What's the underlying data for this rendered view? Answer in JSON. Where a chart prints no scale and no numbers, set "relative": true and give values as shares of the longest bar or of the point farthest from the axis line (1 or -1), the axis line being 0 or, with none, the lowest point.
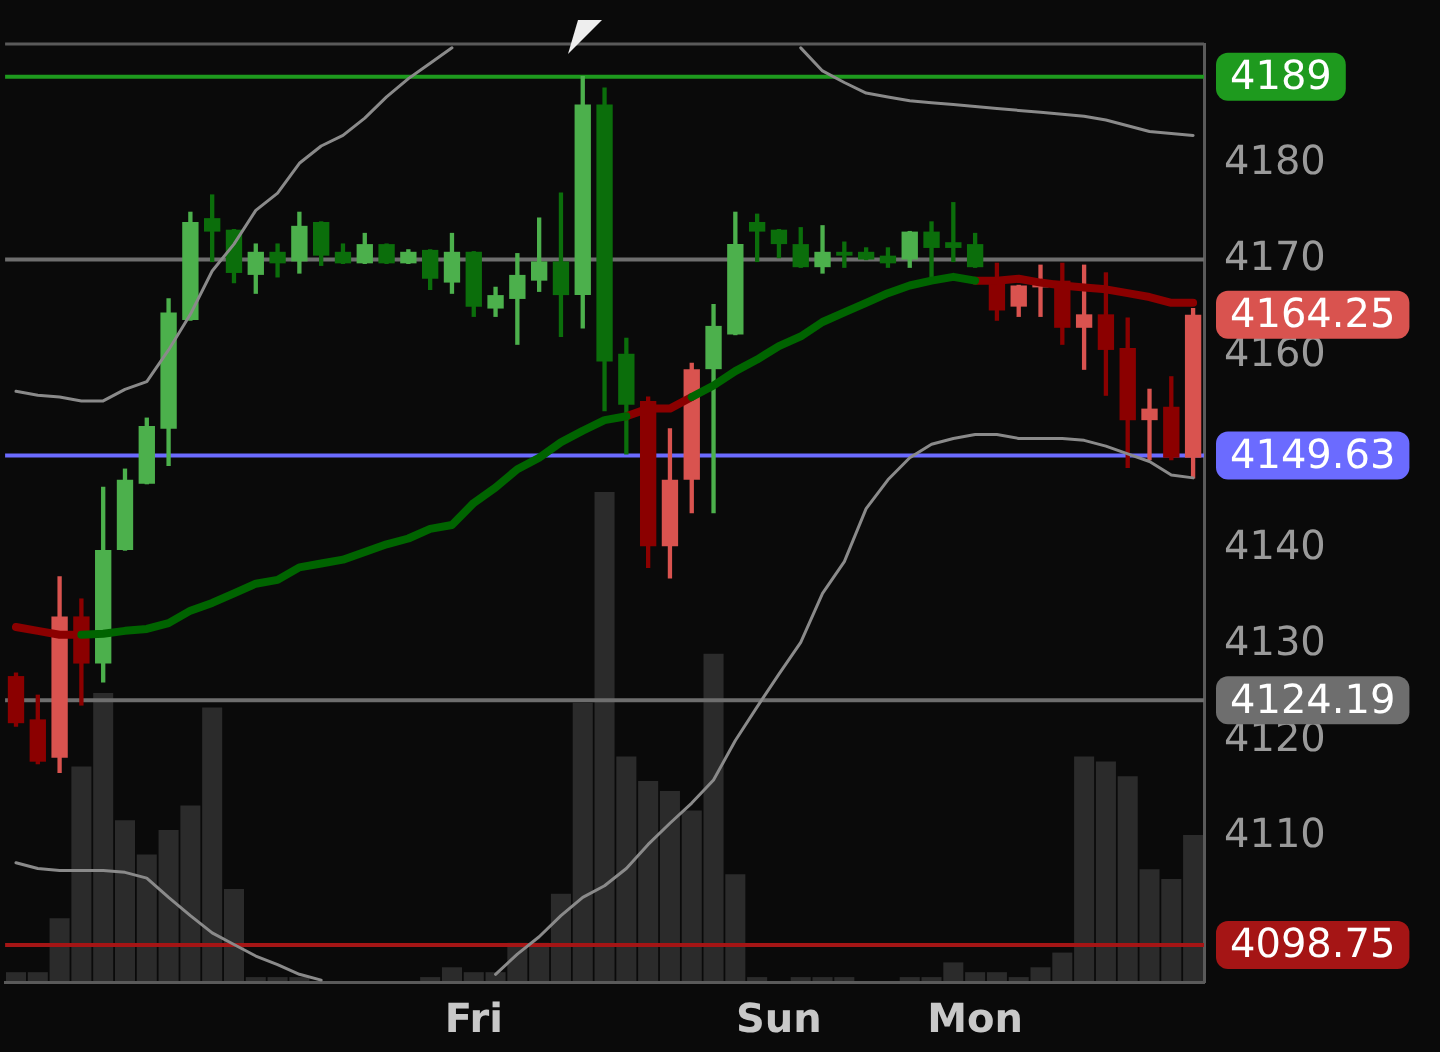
{
  "chart_data": [
    {
      "type": "candlestick",
      "categories": [
        null,
        null,
        null,
        null,
        null,
        null,
        null,
        null,
        null,
        null,
        null,
        null,
        null,
        null,
        null,
        null,
        null,
        null,
        null,
        null,
        null,
        "Fri",
        null,
        null,
        null,
        null,
        null,
        null,
        null,
        null,
        null,
        null,
        null,
        null,
        null,
        "Sun",
        null,
        null,
        null,
        null,
        null,
        null,
        null,
        null,
        "Mon",
        null,
        null,
        null,
        null,
        null,
        null,
        null,
        null,
        null,
        null
      ],
      "ohlc": [
        [
          4126.7,
          4127.0,
          4121.5,
          4121.8
        ],
        [
          4122.2,
          4124.7,
          4117.6,
          4117.8
        ],
        [
          4118.2,
          4137.0,
          4116.7,
          4132.9
        ],
        [
          4132.9,
          4134.7,
          4123.7,
          4128.0
        ],
        [
          4128.0,
          4146.3,
          4126.1,
          4139.8
        ],
        [
          4139.8,
          4148.2,
          4139.8,
          4147.1
        ],
        [
          4146.7,
          4153.5,
          4146.7,
          4152.7
        ],
        [
          4152.4,
          4165.9,
          4148.6,
          4164.5
        ],
        [
          4163.7,
          4174.9,
          4163.7,
          4173.9
        ],
        [
          4174.3,
          4176.7,
          4169.8,
          4172.9
        ],
        [
          4173.1,
          4173.1,
          4167.6,
          4168.6
        ],
        [
          4168.4,
          4171.6,
          4166.5,
          4170.8
        ],
        [
          4170.8,
          4171.6,
          4168.2,
          4169.6
        ],
        [
          4169.8,
          4174.9,
          4168.6,
          4173.5
        ],
        [
          4173.9,
          4173.9,
          4169.4,
          4170.4
        ],
        [
          4170.8,
          4171.6,
          4169.6,
          4169.6
        ],
        [
          4169.6,
          4172.7,
          4169.6,
          4171.6
        ],
        [
          4171.6,
          4171.6,
          4169.6,
          4169.6
        ],
        [
          4169.6,
          4171.0,
          4169.6,
          4170.8
        ],
        [
          4171.0,
          4171.0,
          4166.9,
          4168.0
        ],
        [
          4167.6,
          4172.7,
          4166.5,
          4170.8
        ],
        [
          4170.8,
          4170.8,
          4164.1,
          4165.1
        ],
        [
          4164.9,
          4167.1,
          4164.1,
          4166.3
        ],
        [
          4165.9,
          4170.6,
          4161.2,
          4168.4
        ],
        [
          4167.8,
          4174.3,
          4166.7,
          4169.8
        ],
        [
          4169.8,
          4176.9,
          4162.0,
          4166.3
        ],
        [
          4166.3,
          4189.0,
          4162.9,
          4186.1
        ],
        [
          4186.1,
          4187.8,
          4154.3,
          4159.4
        ],
        [
          4160.2,
          4161.8,
          4149.8,
          4154.9
        ],
        [
          4155.3,
          4155.7,
          4138.0,
          4140.2
        ],
        [
          4140.2,
          4152.4,
          4136.9,
          4147.1
        ],
        [
          4147.1,
          4159.2,
          4143.7,
          4158.6
        ],
        [
          4158.6,
          4165.3,
          4143.7,
          4163.1
        ],
        [
          4162.2,
          4174.9,
          4162.2,
          4171.6
        ],
        [
          4173.9,
          4174.7,
          4169.8,
          4172.9
        ],
        [
          4173.1,
          4173.1,
          4170.2,
          4171.6
        ],
        [
          4171.6,
          4173.3,
          4169.2,
          4169.2
        ],
        [
          4169.2,
          4173.5,
          4168.6,
          4170.8
        ],
        [
          4170.8,
          4171.8,
          4169.2,
          4170.4
        ],
        [
          4170.8,
          4171.2,
          4170.0,
          4170.0
        ],
        [
          4170.4,
          4171.2,
          4169.2,
          4169.6
        ],
        [
          4170.0,
          4172.9,
          4169.2,
          4172.9
        ],
        [
          4172.9,
          4173.9,
          4167.8,
          4171.2
        ],
        [
          4171.8,
          4175.9,
          4169.8,
          4171.2
        ],
        [
          4171.6,
          4172.7,
          4169.2,
          4169.2
        ],
        [
          4168.0,
          4169.6,
          4163.7,
          4164.7
        ],
        [
          4165.1,
          4167.3,
          4164.1,
          4167.3
        ],
        [
          4167.1,
          4169.4,
          4164.1,
          4167.8
        ],
        [
          4167.8,
          4169.6,
          4161.2,
          4162.9
        ],
        [
          4162.9,
          4169.4,
          4158.6,
          4164.3
        ],
        [
          4164.3,
          4168.6,
          4155.9,
          4160.6
        ],
        [
          4160.8,
          4163.9,
          4148.4,
          4153.3
        ],
        [
          4153.3,
          4156.5,
          4149.2,
          4154.5
        ],
        [
          4154.7,
          4157.8,
          4149.2,
          4149.4
        ],
        [
          4149.4,
          4164.9,
          4147.3,
          4164.25
        ]
      ],
      "colors": [
        "#8b0000",
        "#8b0000",
        "#d9534f",
        "#8b0000",
        "#4cb04c",
        "#4cb04c",
        "#4cb04c",
        "#4cb04c",
        "#4cb04c",
        "#0b6e0b",
        "#0b6e0b",
        "#4cb04c",
        "#0b6e0b",
        "#4cb04c",
        "#0b6e0b",
        "#0b6e0b",
        "#4cb04c",
        "#0b6e0b",
        "#4cb04c",
        "#0b6e0b",
        "#4cb04c",
        "#0b6e0b",
        "#4cb04c",
        "#4cb04c",
        "#4cb04c",
        "#0b6e0b",
        "#4cb04c",
        "#0b6e0b",
        "#0b6e0b",
        "#8b0000",
        "#d9534f",
        "#d9534f",
        "#4cb04c",
        "#4cb04c",
        "#0b6e0b",
        "#0b6e0b",
        "#0b6e0b",
        "#4cb04c",
        "#0b6e0b",
        "#0b6e0b",
        "#0b6e0b",
        "#4cb04c",
        "#0b6e0b",
        "#0b6e0b",
        "#0b6e0b",
        "#8b0000",
        "#d9534f",
        "#d9534f",
        "#8b0000",
        "#d9534f",
        "#8b0000",
        "#8b0000",
        "#d9534f",
        "#8b0000",
        "#d9534f"
      ],
      "series": [
        {
          "type": "line",
          "color": "#8a8a8a",
          "values": [
            4156.3,
            4155.9,
            4155.7,
            4155.3,
            4155.3,
            4156.5,
            4157.3,
            4160.6,
            4164.3,
            4168.8,
            4171.6,
            4175.1,
            4176.9,
            4180.0,
            4181.8,
            4182.9,
            4184.7,
            4186.9,
            4188.8,
            4190.4,
            4192.0,
            null,
            null,
            null,
            null,
            null,
            null,
            null,
            null,
            null,
            null,
            null,
            null,
            null,
            null,
            null,
            4192.0,
            4189.6,
            4188.4,
            4187.3,
            4186.9,
            4186.5,
            4186.3,
            4186.1,
            4185.9,
            4185.7,
            4185.5,
            4185.3,
            4185.1,
            4184.9,
            4184.5,
            4183.9,
            4183.3,
            4183.1,
            4182.9
          ]
        },
        {
          "type": "line",
          "color": "#8a8a8a",
          "values": [
            4107.3,
            4106.7,
            4106.5,
            4106.5,
            4106.5,
            4106.3,
            4105.7,
            4103.7,
            4101.8,
            4100.0,
            4098.8,
            4097.6,
            4096.7,
            4095.7,
            4095.1,
            null,
            null,
            null,
            null,
            null,
            null,
            null,
            4095.7,
            4097.8,
            4099.6,
            4101.8,
            4103.7,
            4104.9,
            4106.7,
            4109.2,
            4111.4,
            4113.5,
            4115.9,
            4120.0,
            4123.5,
            4126.9,
            4130.2,
            4135.3,
            4138.6,
            4144.1,
            4147.1,
            4149.4,
            4150.8,
            4151.4,
            4151.8,
            4151.8,
            4151.4,
            4151.4,
            4151.4,
            4151.2,
            4150.6,
            4149.8,
            4149.0,
            4147.6,
            4147.3
          ]
        },
        {
          "type": "line",
          "color": "#006400",
          "values": [
            null,
            null,
            null,
            4131.0,
            4131.1,
            4131.4,
            4131.6,
            4132.2,
            4133.5,
            4134.3,
            4135.3,
            4136.3,
            4136.7,
            4138.0,
            4138.4,
            4138.8,
            4139.6,
            4140.4,
            4141.0,
            4142.0,
            4142.4,
            4144.7,
            4146.3,
            4148.2,
            4149.4,
            4151.0,
            4152.2,
            4153.3,
            4153.7,
            null,
            null,
            4155.7,
            4156.9,
            4158.4,
            4159.6,
            4161.0,
            4162.0,
            4163.5,
            4164.5,
            4165.5,
            4166.5,
            4167.3,
            4167.8,
            4168.2,
            4167.8,
            null,
            null,
            null,
            null,
            null,
            null,
            null,
            null,
            null,
            null
          ]
        },
        {
          "type": "line",
          "color": "#8b0000",
          "values": [
            4131.8,
            4131.4,
            4131.0,
            4131.0,
            null,
            null,
            null,
            null,
            null,
            null,
            null,
            null,
            null,
            null,
            null,
            null,
            null,
            null,
            null,
            null,
            null,
            null,
            null,
            null,
            null,
            null,
            null,
            null,
            4153.7,
            4154.5,
            4154.5,
            4155.7,
            null,
            null,
            null,
            null,
            null,
            null,
            null,
            null,
            null,
            null,
            null,
            null,
            4167.8,
            4167.8,
            4168.0,
            4167.6,
            4167.3,
            4167.1,
            4166.9,
            4166.5,
            4166.1,
            4165.5,
            4165.5
          ]
        }
      ],
      "ylim": [
        4094.9,
        4192.4
      ],
      "yticks": [
        4110,
        4120,
        4130,
        4140,
        4160,
        4170,
        4180
      ],
      "ref_lines": [
        {
          "axis": "y",
          "value": 4189,
          "label": "4189",
          "color": "#1e9a1e"
        },
        {
          "axis": "y",
          "value": 4170,
          "color": "#6e6e6e"
        },
        {
          "axis": "y",
          "value": 4149.63,
          "label": "4149.63",
          "color": "#6b6bff"
        },
        {
          "axis": "y",
          "value": 4124.19,
          "label": "4124.19",
          "color": "#6e6e6e"
        },
        {
          "axis": "y",
          "value": 4098.75,
          "label": "4098.75",
          "color": "#a51515"
        }
      ],
      "annotations": [
        "4164.25"
      ],
      "legend": false
    },
    {
      "type": "bar",
      "relative": true,
      "categories": [
        null,
        null,
        null,
        null,
        null,
        null,
        null,
        null,
        null,
        null,
        null,
        null,
        null,
        null,
        null,
        null,
        null,
        null,
        null,
        null,
        null,
        null,
        null,
        null,
        null,
        null,
        null,
        null,
        null,
        null,
        null,
        null,
        null,
        null,
        null,
        null,
        null,
        null,
        null,
        null,
        null,
        null,
        null,
        null,
        null,
        null,
        null,
        null,
        null,
        null,
        null,
        null,
        null,
        null,
        null
      ],
      "color": "#2b2b2b",
      "values": [
        0.02,
        0.02,
        0.13,
        0.44,
        0.59,
        0.33,
        0.26,
        0.31,
        0.36,
        0.56,
        0.19,
        0.01,
        0.01,
        0.01,
        null,
        0,
        0,
        0,
        0,
        0.01,
        0.03,
        0.02,
        0.02,
        0.08,
        0.08,
        0.18,
        0.57,
        1,
        0.46,
        0.41,
        0.39,
        0.35,
        0.67,
        0.22,
        0.01,
        0,
        0.01,
        0.01,
        0.01,
        0,
        0,
        0.01,
        0.01,
        0.04,
        0.02,
        0.02,
        0.01,
        0.03,
        0.06,
        0.46,
        0.45,
        0.42,
        0.23,
        0.21,
        0.3
      ]
    }
  ]
}
